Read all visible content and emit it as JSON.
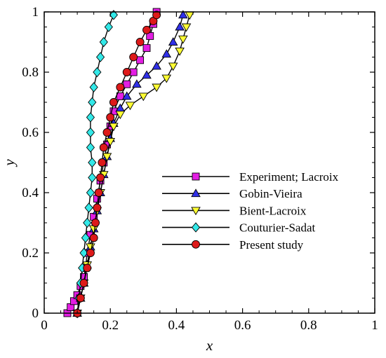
{
  "chart_data": {
    "type": "line",
    "title": "",
    "xlabel": "x",
    "ylabel": "y",
    "xlim": [
      0,
      1
    ],
    "ylim": [
      0,
      1
    ],
    "x_ticks": [
      "0",
      "0.2",
      "0.4",
      "0.6",
      "0.8",
      "1"
    ],
    "y_ticks": [
      "0",
      "0.2",
      "0.4",
      "0.6",
      "0.8",
      "1"
    ],
    "grid": false,
    "legend_position": "center-right",
    "series": [
      {
        "name": "Experiment; Lacroix",
        "marker": "square",
        "color": "#e31ee3",
        "points": [
          [
            0.07,
            0
          ],
          [
            0.08,
            0.02
          ],
          [
            0.09,
            0.04
          ],
          [
            0.1,
            0.06
          ],
          [
            0.11,
            0.09
          ],
          [
            0.12,
            0.12
          ],
          [
            0.125,
            0.15
          ],
          [
            0.13,
            0.2
          ],
          [
            0.14,
            0.26
          ],
          [
            0.15,
            0.32
          ],
          [
            0.16,
            0.38
          ],
          [
            0.17,
            0.44
          ],
          [
            0.18,
            0.5
          ],
          [
            0.19,
            0.56
          ],
          [
            0.2,
            0.62
          ],
          [
            0.21,
            0.67
          ],
          [
            0.23,
            0.72
          ],
          [
            0.25,
            0.76
          ],
          [
            0.27,
            0.8
          ],
          [
            0.29,
            0.84
          ],
          [
            0.31,
            0.88
          ],
          [
            0.32,
            0.92
          ],
          [
            0.33,
            0.96
          ],
          [
            0.34,
            1.0
          ]
        ]
      },
      {
        "name": "Gobin-Vieira",
        "marker": "triangle-up",
        "color": "#3030e8",
        "points": [
          [
            0.1,
            0
          ],
          [
            0.11,
            0.05
          ],
          [
            0.12,
            0.1
          ],
          [
            0.13,
            0.16
          ],
          [
            0.14,
            0.22
          ],
          [
            0.15,
            0.28
          ],
          [
            0.16,
            0.34
          ],
          [
            0.17,
            0.4
          ],
          [
            0.18,
            0.46
          ],
          [
            0.19,
            0.52
          ],
          [
            0.2,
            0.58
          ],
          [
            0.21,
            0.63
          ],
          [
            0.23,
            0.68
          ],
          [
            0.25,
            0.72
          ],
          [
            0.28,
            0.76
          ],
          [
            0.31,
            0.79
          ],
          [
            0.34,
            0.82
          ],
          [
            0.37,
            0.86
          ],
          [
            0.39,
            0.9
          ],
          [
            0.41,
            0.95
          ],
          [
            0.42,
            0.99
          ]
        ]
      },
      {
        "name": "Bient-Lacroix",
        "marker": "triangle-down",
        "color": "#ffff33",
        "points": [
          [
            0.1,
            0
          ],
          [
            0.11,
            0.05
          ],
          [
            0.12,
            0.1
          ],
          [
            0.13,
            0.16
          ],
          [
            0.14,
            0.22
          ],
          [
            0.15,
            0.28
          ],
          [
            0.16,
            0.34
          ],
          [
            0.17,
            0.4
          ],
          [
            0.18,
            0.46
          ],
          [
            0.19,
            0.52
          ],
          [
            0.2,
            0.57
          ],
          [
            0.21,
            0.62
          ],
          [
            0.23,
            0.66
          ],
          [
            0.26,
            0.69
          ],
          [
            0.3,
            0.72
          ],
          [
            0.34,
            0.75
          ],
          [
            0.37,
            0.78
          ],
          [
            0.39,
            0.82
          ],
          [
            0.41,
            0.87
          ],
          [
            0.42,
            0.91
          ],
          [
            0.43,
            0.95
          ],
          [
            0.44,
            0.99
          ]
        ]
      },
      {
        "name": "Couturier-Sadat",
        "marker": "diamond",
        "color": "#33e8e8",
        "points": [
          [
            0.1,
            0
          ],
          [
            0.105,
            0.05
          ],
          [
            0.11,
            0.1
          ],
          [
            0.115,
            0.15
          ],
          [
            0.12,
            0.2
          ],
          [
            0.125,
            0.25
          ],
          [
            0.13,
            0.3
          ],
          [
            0.135,
            0.35
          ],
          [
            0.14,
            0.4
          ],
          [
            0.145,
            0.45
          ],
          [
            0.145,
            0.5
          ],
          [
            0.14,
            0.55
          ],
          [
            0.14,
            0.6
          ],
          [
            0.14,
            0.65
          ],
          [
            0.145,
            0.7
          ],
          [
            0.15,
            0.75
          ],
          [
            0.16,
            0.8
          ],
          [
            0.17,
            0.85
          ],
          [
            0.18,
            0.9
          ],
          [
            0.195,
            0.95
          ],
          [
            0.21,
            0.99
          ]
        ]
      },
      {
        "name": "Present study",
        "marker": "circle",
        "color": "#dd1a1a",
        "points": [
          [
            0.1,
            0
          ],
          [
            0.11,
            0.05
          ],
          [
            0.12,
            0.1
          ],
          [
            0.13,
            0.15
          ],
          [
            0.14,
            0.2
          ],
          [
            0.15,
            0.25
          ],
          [
            0.155,
            0.3
          ],
          [
            0.16,
            0.35
          ],
          [
            0.165,
            0.4
          ],
          [
            0.17,
            0.45
          ],
          [
            0.175,
            0.5
          ],
          [
            0.18,
            0.55
          ],
          [
            0.19,
            0.6
          ],
          [
            0.2,
            0.65
          ],
          [
            0.21,
            0.7
          ],
          [
            0.23,
            0.75
          ],
          [
            0.25,
            0.8
          ],
          [
            0.27,
            0.85
          ],
          [
            0.29,
            0.9
          ],
          [
            0.31,
            0.94
          ],
          [
            0.33,
            0.97
          ],
          [
            0.34,
            0.99
          ]
        ]
      }
    ]
  }
}
